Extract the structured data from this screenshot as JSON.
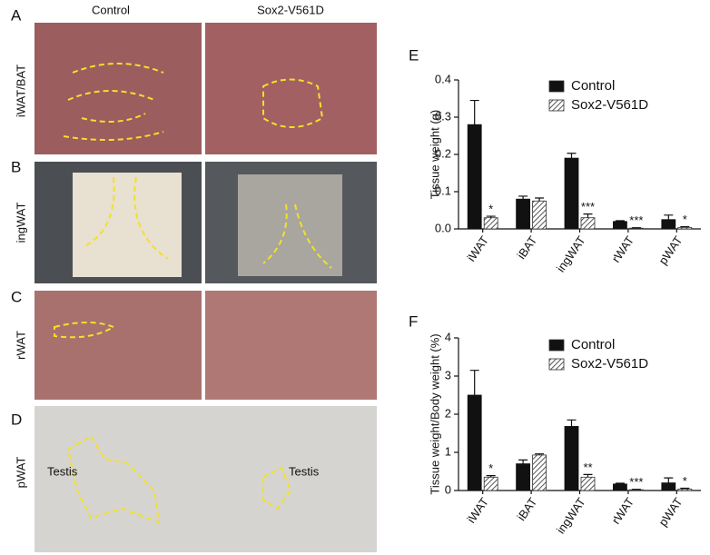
{
  "figure": {
    "column_labels": [
      "Control",
      "Sox2-V561D"
    ],
    "panel_letters": [
      "A",
      "B",
      "C",
      "D"
    ],
    "row_labels": [
      "iWAT/BAT",
      "ingWAT",
      "rWAT",
      "pWAT"
    ],
    "annotations": [
      "Testis",
      "Testis"
    ]
  },
  "chart_data": [
    {
      "panel": "E",
      "type": "bar",
      "ylabel": "Tissue weight (g)",
      "categories": [
        "iWAT",
        "iBAT",
        "ingWAT",
        "rWAT",
        "pWAT"
      ],
      "ylim": [
        0,
        0.4
      ],
      "yticks": [
        {
          "value": 0,
          "label": "0.0"
        },
        0.1,
        0.2,
        0.3,
        0.4
      ],
      "series": [
        {
          "name": "Control",
          "color": "#111111",
          "values": [
            0.28,
            0.08,
            0.19,
            0.02,
            0.025
          ],
          "errors": [
            0.065,
            0.008,
            0.013,
            0.002,
            0.012
          ]
        },
        {
          "name": "Sox2-V561D",
          "color": "#a0a0a0",
          "values": [
            0.03,
            0.075,
            0.03,
            0.002,
            0.004
          ],
          "errors": [
            0.004,
            0.008,
            0.01,
            0.001,
            0.002
          ],
          "significance": [
            "*",
            null,
            "***",
            "***",
            "*"
          ]
        }
      ]
    },
    {
      "panel": "F",
      "type": "bar",
      "ylabel": "Tissue weight/Body weight (%)",
      "categories": [
        "iWAT",
        "iBAT",
        "ingWAT",
        "rWAT",
        "pWAT"
      ],
      "ylim": [
        0,
        4
      ],
      "yticks": [
        0,
        1,
        2,
        3,
        4
      ],
      "series": [
        {
          "name": "Control",
          "color": "#111111",
          "values": [
            2.5,
            0.7,
            1.68,
            0.17,
            0.2
          ],
          "errors": [
            0.65,
            0.1,
            0.17,
            0.02,
            0.13
          ]
        },
        {
          "name": "Sox2-V561D",
          "color": "#a0a0a0",
          "values": [
            0.35,
            0.93,
            0.35,
            0.02,
            0.04
          ],
          "errors": [
            0.04,
            0.03,
            0.07,
            0.01,
            0.02
          ],
          "significance": [
            "*",
            null,
            "**",
            "***",
            "*"
          ]
        }
      ]
    }
  ]
}
